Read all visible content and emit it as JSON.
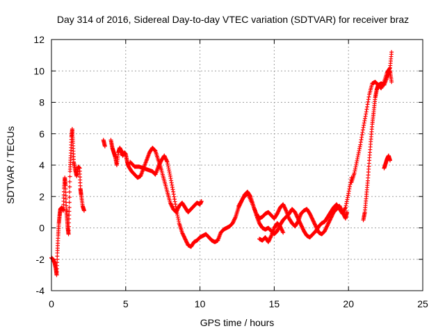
{
  "chart_data": {
    "type": "scatter",
    "title": "Day 314 of 2016, Sidereal Day-to-day VTEC variation (SDTVAR) for receiver braz",
    "xlabel": "GPS time / hours",
    "ylabel": "SDTVAR / TECUs",
    "xlim": [
      0,
      25
    ],
    "ylim": [
      -4,
      12
    ],
    "xticks": [
      "0",
      "5",
      "10",
      "15",
      "20",
      "25"
    ],
    "yticks": [
      "-4",
      "-2",
      "0",
      "2",
      "4",
      "6",
      "8",
      "10",
      "12"
    ],
    "grid": true,
    "marker": "+",
    "color": "#ff0000",
    "series": [
      {
        "points": [
          [
            0.0,
            -1.9
          ],
          [
            0.1,
            -2.0
          ],
          [
            0.2,
            -2.2
          ],
          [
            0.3,
            -2.6
          ],
          [
            0.35,
            -3.0
          ],
          [
            0.4,
            -1.6
          ],
          [
            0.45,
            -0.5
          ],
          [
            0.5,
            0.3
          ],
          [
            0.55,
            0.8
          ],
          [
            0.6,
            1.2
          ],
          [
            0.7,
            1.3
          ],
          [
            0.8,
            1.1
          ],
          [
            0.85,
            2.5
          ],
          [
            0.9,
            3.2
          ],
          [
            0.95,
            2.7
          ],
          [
            1.0,
            1.2
          ],
          [
            1.05,
            0.6
          ],
          [
            1.1,
            0.0
          ],
          [
            1.15,
            -0.4
          ],
          [
            1.2,
            1.3
          ],
          [
            1.25,
            3.6
          ],
          [
            1.3,
            4.6
          ],
          [
            1.35,
            5.8
          ],
          [
            1.4,
            6.3
          ],
          [
            1.45,
            5.4
          ],
          [
            1.5,
            4.2
          ],
          [
            1.6,
            3.7
          ],
          [
            1.7,
            3.3
          ],
          [
            1.8,
            3.9
          ],
          [
            1.9,
            3.8
          ],
          [
            1.95,
            2.5
          ],
          [
            2.0,
            2.1
          ],
          [
            2.1,
            1.4
          ],
          [
            2.2,
            1.1
          ]
        ]
      },
      {
        "points": [
          [
            3.5,
            5.6
          ],
          [
            3.6,
            5.2
          ],
          [
            4.0,
            5.6
          ],
          [
            4.1,
            5.1
          ],
          [
            4.2,
            4.8
          ],
          [
            4.3,
            4.5
          ],
          [
            4.4,
            4.0
          ],
          [
            4.5,
            4.8
          ],
          [
            4.6,
            5.1
          ],
          [
            4.7,
            4.9
          ],
          [
            4.8,
            4.6
          ],
          [
            4.9,
            4.8
          ],
          [
            5.0,
            4.7
          ],
          [
            5.1,
            4.2
          ],
          [
            5.2,
            3.9
          ],
          [
            5.4,
            3.6
          ],
          [
            5.6,
            3.4
          ],
          [
            5.8,
            3.2
          ],
          [
            6.0,
            3.3
          ],
          [
            6.2,
            3.8
          ],
          [
            6.4,
            4.3
          ],
          [
            6.6,
            4.8
          ],
          [
            6.8,
            5.1
          ],
          [
            7.0,
            4.9
          ],
          [
            7.2,
            4.3
          ],
          [
            7.4,
            3.7
          ],
          [
            7.6,
            3.0
          ],
          [
            7.8,
            2.3
          ],
          [
            8.0,
            1.6
          ],
          [
            8.2,
            1.2
          ],
          [
            8.4,
            1.0
          ],
          [
            8.6,
            1.4
          ],
          [
            8.8,
            1.6
          ],
          [
            9.0,
            1.3
          ],
          [
            9.2,
            1.0
          ],
          [
            9.4,
            1.2
          ],
          [
            9.6,
            1.4
          ],
          [
            9.8,
            1.6
          ],
          [
            10.0,
            1.5
          ],
          [
            10.1,
            1.7
          ]
        ]
      },
      {
        "points": [
          [
            5.3,
            4.2
          ],
          [
            5.6,
            3.9
          ],
          [
            5.9,
            3.9
          ],
          [
            6.2,
            3.8
          ],
          [
            6.5,
            3.7
          ],
          [
            6.8,
            3.6
          ],
          [
            7.0,
            3.4
          ],
          [
            7.2,
            3.9
          ],
          [
            7.4,
            4.3
          ],
          [
            7.6,
            4.6
          ],
          [
            7.8,
            4.2
          ],
          [
            8.0,
            3.3
          ],
          [
            8.2,
            2.3
          ],
          [
            8.4,
            1.2
          ],
          [
            8.6,
            0.3
          ],
          [
            8.8,
            -0.3
          ],
          [
            9.0,
            -0.7
          ],
          [
            9.2,
            -1.1
          ],
          [
            9.4,
            -1.2
          ],
          [
            9.6,
            -0.9
          ],
          [
            9.8,
            -0.8
          ],
          [
            10.0,
            -0.6
          ],
          [
            10.2,
            -0.5
          ],
          [
            10.4,
            -0.4
          ],
          [
            10.6,
            -0.6
          ],
          [
            10.8,
            -0.8
          ],
          [
            11.0,
            -0.9
          ],
          [
            11.2,
            -0.8
          ],
          [
            11.4,
            -0.3
          ],
          [
            11.6,
            -0.1
          ],
          [
            11.8,
            0.0
          ],
          [
            12.0,
            0.1
          ],
          [
            12.2,
            0.3
          ],
          [
            12.4,
            0.7
          ],
          [
            12.6,
            1.3
          ],
          [
            12.8,
            1.7
          ],
          [
            13.0,
            2.1
          ],
          [
            13.2,
            2.3
          ],
          [
            13.4,
            2.0
          ],
          [
            13.6,
            1.4
          ],
          [
            13.8,
            0.8
          ],
          [
            14.0,
            0.3
          ],
          [
            14.2,
            0.0
          ],
          [
            14.4,
            -0.1
          ],
          [
            14.6,
            0.0
          ],
          [
            14.8,
            -0.2
          ],
          [
            15.0,
            -0.4
          ],
          [
            15.2,
            -0.2
          ],
          [
            15.4,
            0.2
          ],
          [
            15.6,
            0.5
          ],
          [
            15.8,
            0.7
          ],
          [
            16.0,
            0.9
          ],
          [
            16.2,
            1.2
          ],
          [
            16.4,
            1.0
          ],
          [
            16.6,
            0.6
          ],
          [
            16.8,
            0.2
          ],
          [
            17.0,
            -0.2
          ],
          [
            17.2,
            -0.5
          ],
          [
            17.4,
            -0.6
          ],
          [
            17.6,
            -0.4
          ],
          [
            17.8,
            -0.2
          ],
          [
            18.0,
            0.1
          ],
          [
            18.2,
            0.3
          ],
          [
            18.4,
            0.4
          ],
          [
            18.6,
            0.7
          ],
          [
            18.8,
            1.0
          ],
          [
            19.0,
            1.3
          ],
          [
            19.2,
            1.5
          ],
          [
            19.4,
            1.2
          ],
          [
            19.6,
            0.9
          ],
          [
            19.8,
            1.3
          ],
          [
            20.0,
            2.2
          ],
          [
            20.2,
            3.2
          ]
        ]
      },
      {
        "points": [
          [
            12.6,
            1.4
          ],
          [
            12.9,
            1.9
          ],
          [
            13.2,
            2.2
          ],
          [
            13.5,
            1.6
          ],
          [
            13.8,
            0.9
          ],
          [
            14.0,
            0.6
          ],
          [
            14.2,
            0.7
          ],
          [
            14.4,
            0.9
          ],
          [
            14.6,
            1.0
          ],
          [
            14.8,
            0.8
          ],
          [
            15.0,
            0.6
          ],
          [
            15.2,
            0.9
          ],
          [
            15.4,
            1.3
          ],
          [
            15.6,
            1.5
          ],
          [
            15.8,
            1.1
          ],
          [
            16.0,
            0.6
          ],
          [
            16.2,
            0.3
          ],
          [
            16.4,
            0.1
          ],
          [
            16.6,
            0.4
          ],
          [
            16.8,
            0.9
          ],
          [
            17.0,
            1.1
          ],
          [
            17.2,
            1.2
          ],
          [
            17.4,
            0.9
          ],
          [
            17.6,
            0.5
          ],
          [
            17.8,
            0.1
          ],
          [
            18.0,
            -0.3
          ],
          [
            18.2,
            -0.4
          ],
          [
            18.4,
            -0.2
          ],
          [
            18.6,
            0.2
          ],
          [
            18.8,
            0.6
          ],
          [
            19.0,
            1.0
          ],
          [
            19.2,
            1.2
          ],
          [
            19.4,
            1.4
          ],
          [
            19.6,
            1.0
          ],
          [
            19.8,
            0.6
          ],
          [
            19.9,
            1.0
          ]
        ]
      },
      {
        "points": [
          [
            14.0,
            -0.7
          ],
          [
            14.2,
            -0.8
          ],
          [
            14.4,
            -0.6
          ],
          [
            14.6,
            -0.9
          ],
          [
            14.8,
            -0.5
          ],
          [
            15.0,
            0.0
          ],
          [
            15.2,
            0.3
          ],
          [
            15.4,
            0.1
          ],
          [
            15.6,
            -0.3
          ]
        ]
      },
      {
        "points": [
          [
            20.2,
            2.9
          ],
          [
            20.4,
            3.5
          ],
          [
            20.6,
            4.4
          ],
          [
            20.8,
            5.3
          ],
          [
            21.0,
            6.4
          ],
          [
            21.2,
            7.4
          ],
          [
            21.4,
            8.5
          ],
          [
            21.6,
            9.2
          ],
          [
            21.8,
            9.3
          ],
          [
            22.0,
            9.1
          ],
          [
            22.2,
            8.9
          ],
          [
            22.4,
            9.3
          ],
          [
            22.6,
            9.9
          ],
          [
            22.8,
            10.2
          ],
          [
            22.9,
            11.2
          ]
        ]
      },
      {
        "points": [
          [
            21.0,
            0.5
          ],
          [
            21.1,
            1.0
          ],
          [
            21.2,
            2.0
          ],
          [
            21.3,
            3.0
          ],
          [
            21.4,
            4.3
          ],
          [
            21.5,
            5.5
          ],
          [
            21.6,
            6.6
          ],
          [
            21.7,
            7.4
          ],
          [
            21.8,
            8.3
          ],
          [
            21.9,
            8.8
          ],
          [
            22.0,
            9.1
          ],
          [
            22.2,
            9.2
          ],
          [
            22.4,
            9.1
          ],
          [
            22.6,
            9.6
          ],
          [
            22.8,
            10.0
          ],
          [
            22.9,
            9.3
          ],
          [
            22.85,
            9.6
          ]
        ]
      },
      {
        "points": [
          [
            22.4,
            3.8
          ],
          [
            22.5,
            4.1
          ],
          [
            22.6,
            4.4
          ],
          [
            22.7,
            4.6
          ],
          [
            22.8,
            4.3
          ]
        ]
      }
    ]
  }
}
